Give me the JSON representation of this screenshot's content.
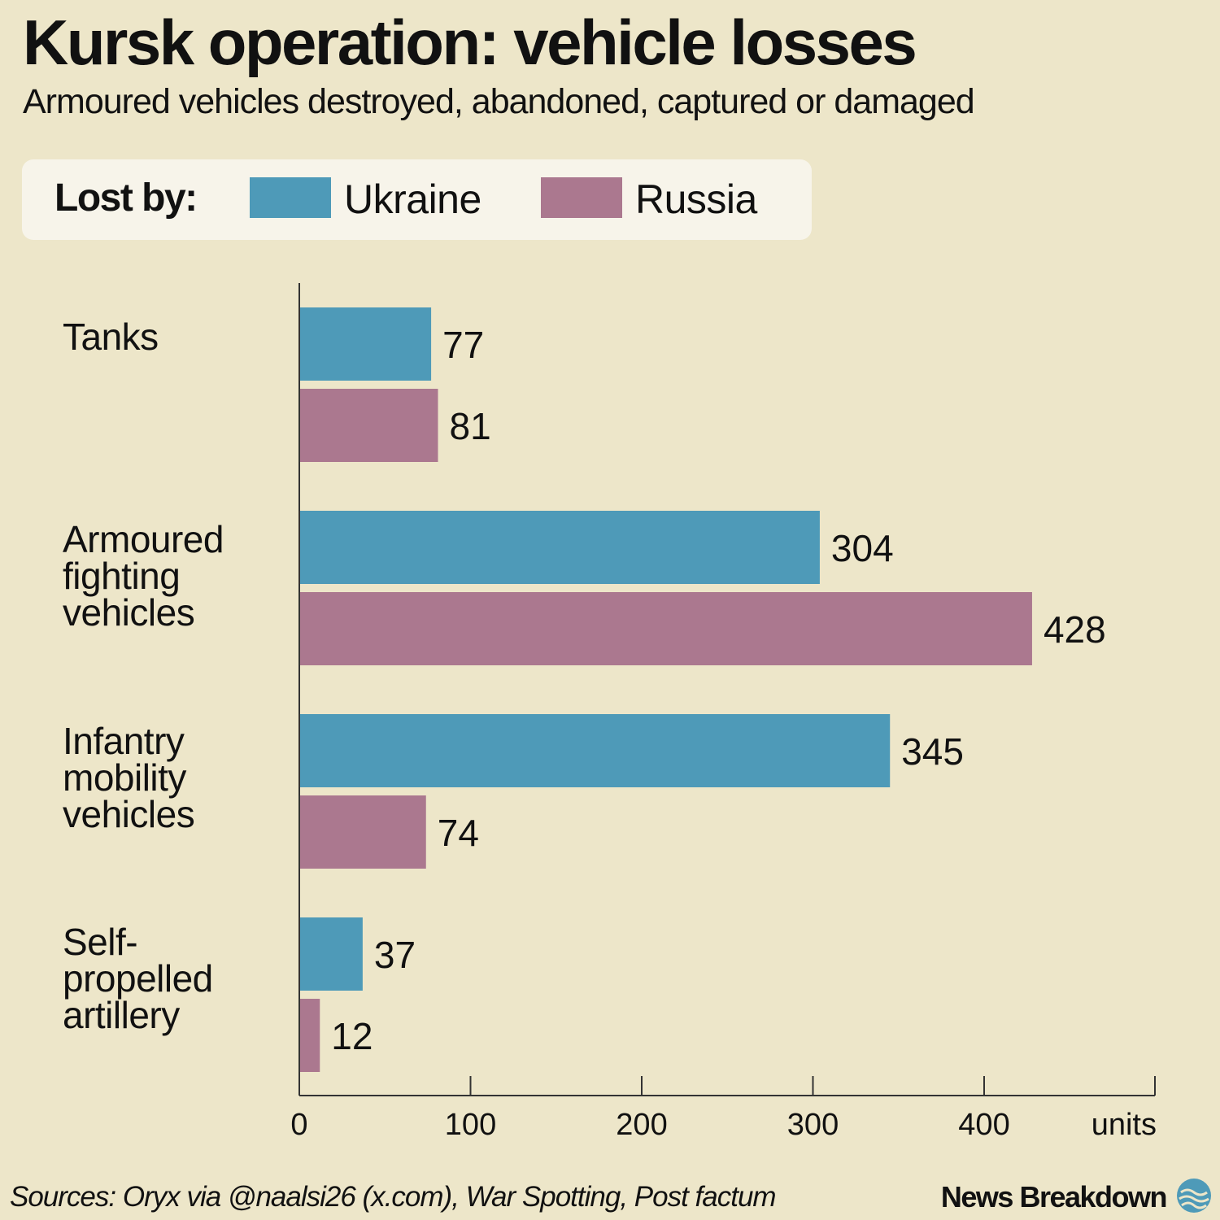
{
  "title": "Kursk operation: vehicle losses",
  "subtitle": "Armoured vehicles destroyed, abandoned, captured or damaged",
  "legend": {
    "title": "Lost by:",
    "items": [
      {
        "label": "Ukraine",
        "color": "#4e9ab8"
      },
      {
        "label": "Russia",
        "color": "#ab788f"
      }
    ]
  },
  "chart_data": {
    "type": "bar",
    "orientation": "horizontal",
    "categories": [
      "Tanks",
      "Armoured\nfighting\nvehicles",
      "Infantry\nmobility\nvehicles",
      "Self-\npropelled\nartillery"
    ],
    "series": [
      {
        "name": "Ukraine",
        "color": "#4e9ab8",
        "values": [
          77,
          304,
          345,
          37
        ]
      },
      {
        "name": "Russia",
        "color": "#ab788f",
        "values": [
          81,
          428,
          74,
          12
        ]
      }
    ],
    "xlim": [
      0,
      500
    ],
    "xticks": [
      "0",
      "100",
      "200",
      "300",
      "400"
    ],
    "xlabel": "units",
    "grid": false,
    "legend_position": "top-left"
  },
  "footer": {
    "sources": "Sources: Oryx via @naalsi26 (x.com), War Spotting, Post factum",
    "brand": "News Breakdown"
  }
}
